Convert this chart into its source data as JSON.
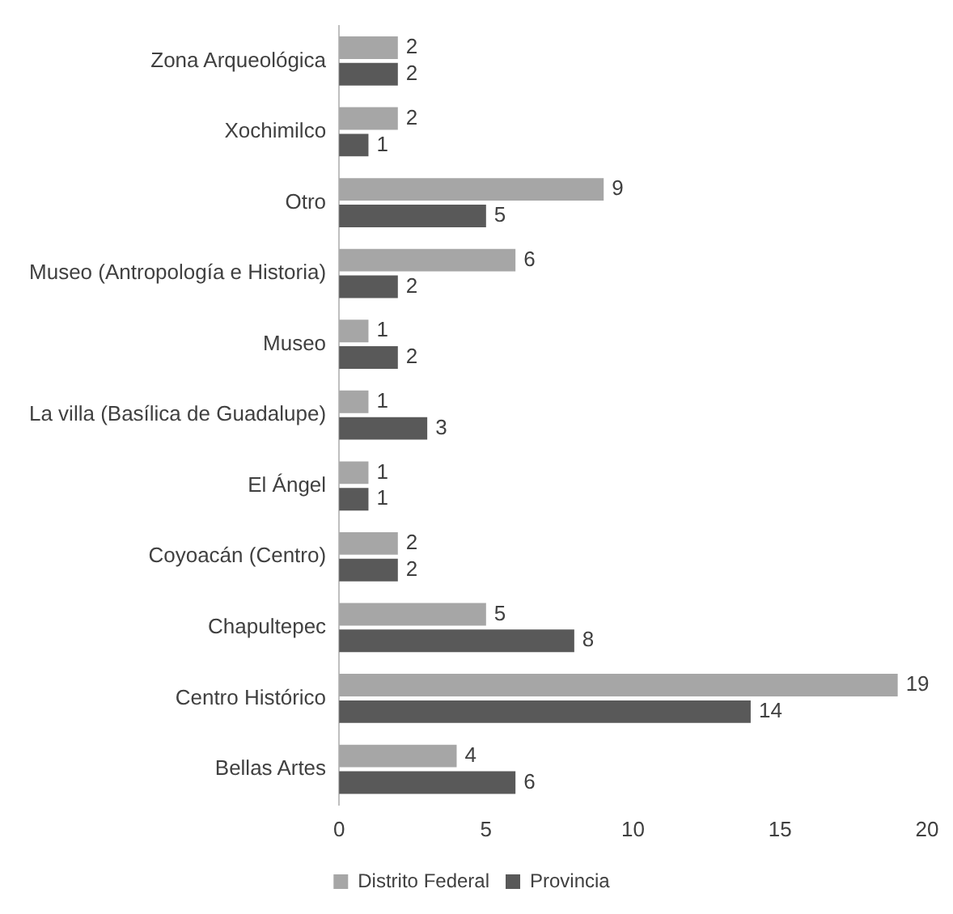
{
  "chart_data": {
    "type": "bar",
    "orientation": "horizontal",
    "categories": [
      "Zona Arqueológica",
      "Xochimilco",
      "Otro",
      "Museo (Antropología e Historia)",
      "Museo",
      "La villa (Basílica de Guadalupe)",
      "El Ángel",
      "Coyoacán (Centro)",
      "Chapultepec",
      "Centro Histórico",
      "Bellas Artes"
    ],
    "series": [
      {
        "name": "Distrito Federal",
        "color": "#a6a6a6",
        "values": [
          2,
          2,
          9,
          6,
          1,
          1,
          1,
          2,
          5,
          19,
          4
        ]
      },
      {
        "name": "Provincia",
        "color": "#595959",
        "values": [
          2,
          1,
          5,
          2,
          2,
          3,
          1,
          2,
          8,
          14,
          6
        ]
      }
    ],
    "xlim": [
      0,
      20
    ],
    "xticks": [
      0,
      5,
      10,
      15,
      20
    ],
    "grid": false,
    "legend": "bottom",
    "data_labels": true
  }
}
